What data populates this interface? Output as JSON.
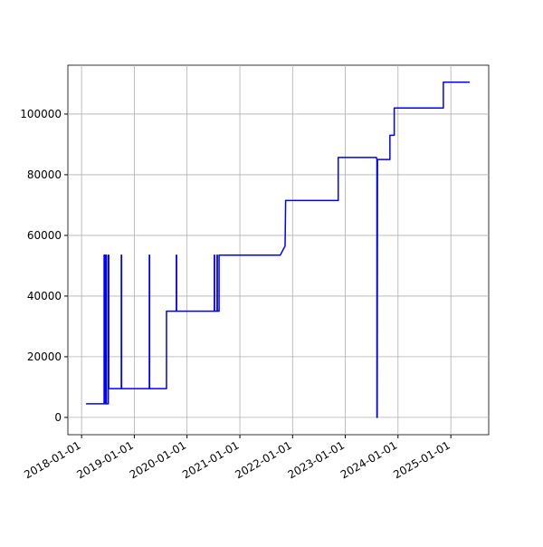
{
  "chart_data": {
    "type": "line",
    "x": [
      "2018-02-01",
      "2018-06-06",
      "2018-06-06",
      "2018-06-10",
      "2018-06-10",
      "2018-06-18",
      "2018-06-18",
      "2018-06-22",
      "2018-06-22",
      "2018-07-05",
      "2018-07-05",
      "2018-07-08",
      "2018-07-08",
      "2018-10-03",
      "2018-10-03",
      "2018-10-05",
      "2018-10-05",
      "2019-04-15",
      "2019-04-15",
      "2019-04-17",
      "2019-04-17",
      "2019-08-12",
      "2019-08-12",
      "2019-10-19",
      "2019-10-19",
      "2019-10-21",
      "2019-10-21",
      "2020-07-08",
      "2020-07-08",
      "2020-07-10",
      "2020-07-10",
      "2020-07-27",
      "2020-07-27",
      "2020-07-29",
      "2020-07-29",
      "2020-08-10",
      "2020-08-10",
      "2021-10-08",
      "2021-11-10",
      "2021-11-14",
      "2022-11-13",
      "2022-11-13",
      "2023-08-04",
      "2023-08-08",
      "2023-08-08",
      "2023-08-10",
      "2023-08-12",
      "2023-11-06",
      "2023-11-06",
      "2023-12-06",
      "2023-12-06",
      "2024-11-10",
      "2024-11-10",
      "2025-05-11"
    ],
    "series": [
      {
        "color": "#0000ff",
        "values": [
          4500,
          4500,
          53500,
          53500,
          4500,
          4500,
          53500,
          53500,
          4500,
          4500,
          53500,
          53500,
          9500,
          9500,
          53500,
          53500,
          9500,
          9500,
          53500,
          53500,
          9500,
          9500,
          35000,
          35000,
          53500,
          53500,
          35000,
          35000,
          53500,
          53500,
          35000,
          35000,
          53500,
          53500,
          35000,
          35000,
          53500,
          53500,
          56500,
          71500,
          71500,
          85700,
          85700,
          85000,
          0,
          0,
          85000,
          85000,
          93000,
          93000,
          102000,
          102000,
          110500,
          110500
        ]
      }
    ],
    "xlim": [
      "2017-09-28",
      "2025-09-20"
    ],
    "xticks": [
      "2018-01-01",
      "2019-01-01",
      "2020-01-01",
      "2021-01-01",
      "2022-01-01",
      "2023-01-01",
      "2024-01-01",
      "2025-01-01"
    ],
    "ylim": [
      -5700,
      116100
    ],
    "yticks": [
      0,
      20000,
      40000,
      60000,
      80000,
      100000
    ],
    "grid": true
  }
}
